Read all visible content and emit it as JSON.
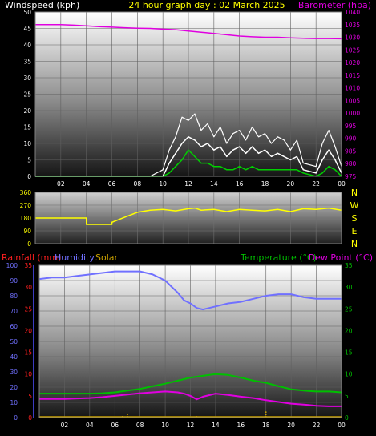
{
  "colors": {
    "windspeed": "#ffffff",
    "gust": "#ffffff",
    "wind_avg": "#00d000",
    "barometer": "#e000e0",
    "direction": "#ffff00",
    "humidity": "#7070ff",
    "temperature": "#00c000",
    "dewpoint": "#e000e0",
    "rainfall": "#ff2020",
    "solar": "#c8a000",
    "title": "#ffff00"
  },
  "chart_data": [
    {
      "id": "wind-baro",
      "type": "line",
      "title": "24 hour graph day : 02 March 2025",
      "ylabel_left": "Windspeed (kph)",
      "ylabel_right": "Barometer (hpa)",
      "x_ticks": [
        "02",
        "04",
        "06",
        "08",
        "10",
        "12",
        "14",
        "16",
        "18",
        "20",
        "22",
        "00"
      ],
      "y_left_ticks": [
        "0",
        "5",
        "10",
        "15",
        "20",
        "25",
        "30",
        "35",
        "40",
        "45",
        "50"
      ],
      "y_right_ticks": [
        "975",
        "980",
        "985",
        "990",
        "995",
        "1000",
        "1005",
        "1010",
        "1015",
        "1020",
        "1025",
        "1030",
        "1035",
        "1040"
      ],
      "ylim_left": [
        0,
        50
      ],
      "ylim_right": [
        975,
        1040
      ],
      "series": [
        {
          "key": "barometer",
          "axis": "right",
          "x": [
            0,
            1,
            2,
            3,
            4,
            5,
            6,
            7,
            8,
            9,
            10,
            11,
            12,
            13,
            14,
            15,
            16,
            17,
            18,
            19,
            20,
            21,
            22,
            23,
            24
          ],
          "values": [
            1035,
            1035,
            1035,
            1034.8,
            1034.5,
            1034.2,
            1034,
            1033.8,
            1033.6,
            1033.5,
            1033.2,
            1033,
            1032.5,
            1032,
            1031.5,
            1031,
            1030.5,
            1030.2,
            1030,
            1030,
            1029.8,
            1029.6,
            1029.5,
            1029.5,
            1029.4
          ]
        },
        {
          "key": "gust",
          "axis": "left",
          "x": [
            0,
            8,
            9,
            10,
            10.5,
            11,
            11.5,
            12,
            12.5,
            13,
            13.5,
            14,
            14.5,
            15,
            15.5,
            16,
            16.5,
            17,
            17.5,
            18,
            18.5,
            19,
            19.5,
            20,
            20.5,
            21,
            22,
            22.5,
            23,
            23.5,
            24
          ],
          "values": [
            0,
            0,
            0,
            2,
            8,
            12,
            18,
            17,
            19,
            14,
            16,
            12,
            15,
            10,
            13,
            14,
            11,
            15,
            12,
            13,
            10,
            12,
            11,
            8,
            11,
            4,
            3,
            10,
            14,
            9,
            3
          ]
        },
        {
          "key": "windspeed",
          "axis": "left",
          "x": [
            0,
            10,
            10.5,
            11,
            11.5,
            12,
            12.5,
            13,
            13.5,
            14,
            14.5,
            15,
            15.5,
            16,
            16.5,
            17,
            17.5,
            18,
            18.5,
            19,
            19.5,
            20,
            20.5,
            21,
            22,
            22.5,
            23,
            23.5,
            24
          ],
          "values": [
            0,
            0,
            4,
            7,
            10,
            12,
            11,
            9,
            10,
            8,
            9,
            6,
            8,
            9,
            7,
            9,
            7,
            8,
            6,
            7,
            6,
            5,
            6,
            2,
            1,
            5,
            8,
            5,
            1
          ]
        },
        {
          "key": "wind_avg",
          "axis": "left",
          "x": [
            0,
            10,
            10.5,
            11,
            11.5,
            12,
            12.5,
            13,
            13.5,
            14,
            14.5,
            15,
            15.5,
            16,
            16.5,
            17,
            17.5,
            18,
            18.5,
            19,
            19.5,
            20,
            20.5,
            21,
            22,
            22.5,
            23,
            23.5,
            24
          ],
          "values": [
            0,
            0,
            1,
            3,
            5,
            8,
            6,
            4,
            4,
            3,
            3,
            2,
            2,
            3,
            2,
            3,
            2,
            2,
            2,
            2,
            2,
            2,
            2,
            1,
            0,
            1,
            3,
            2,
            0
          ]
        }
      ]
    },
    {
      "id": "direction",
      "type": "line",
      "y_left_ticks": [
        "0",
        "90",
        "180",
        "270",
        "360"
      ],
      "y_right_labels": [
        "N",
        "W",
        "S",
        "E",
        "N"
      ],
      "ylim": [
        0,
        360
      ],
      "series": [
        {
          "key": "direction",
          "x": [
            0,
            1,
            2,
            3,
            4,
            4.01,
            5,
            6,
            6.01,
            7,
            8,
            9,
            10,
            11,
            12,
            12.5,
            13,
            14,
            15,
            16,
            17,
            18,
            19,
            20,
            21,
            22,
            23,
            24
          ],
          "values": [
            180,
            180,
            180,
            180,
            180,
            135,
            135,
            135,
            150,
            185,
            220,
            235,
            240,
            230,
            245,
            250,
            235,
            240,
            225,
            240,
            235,
            230,
            240,
            225,
            245,
            240,
            250,
            235
          ]
        }
      ]
    },
    {
      "id": "temp-hum",
      "type": "line",
      "ylabel_left_1": "Rainfall (mm)",
      "ylabel_left_2": "Humidity",
      "ylabel_left_3": "Solar",
      "ylabel_right_1": "Temperature (°C)",
      "ylabel_right_2": "Dew Point (°C)",
      "x_ticks": [
        "02",
        "04",
        "06",
        "08",
        "10",
        "12",
        "14",
        "16",
        "18",
        "20",
        "22",
        "00"
      ],
      "y_hum_ticks": [
        "0",
        "10",
        "20",
        "30",
        "40",
        "50",
        "60",
        "70",
        "80",
        "90",
        "100"
      ],
      "y_rain_ticks": [
        "0",
        "5",
        "10",
        "15",
        "20",
        "25",
        "30",
        "35"
      ],
      "y_temp_ticks": [
        "0",
        "5",
        "10",
        "15",
        "20",
        "25",
        "30",
        "35"
      ],
      "ylim_humidity": [
        0,
        100
      ],
      "ylim_temperature": [
        0,
        35
      ],
      "series": [
        {
          "key": "humidity",
          "axis": "humidity",
          "x": [
            0,
            1,
            2,
            3,
            4,
            5,
            6,
            7,
            8,
            9,
            10,
            10.5,
            11,
            11.5,
            12,
            12.5,
            13,
            14,
            15,
            16,
            17,
            18,
            19,
            20,
            21,
            22,
            23,
            24
          ],
          "values": [
            91,
            92,
            92,
            93,
            94,
            95,
            96,
            96,
            96,
            94,
            90,
            86,
            82,
            77,
            75,
            72,
            71,
            73,
            75,
            76,
            78,
            80,
            81,
            81,
            79,
            78,
            78,
            78
          ]
        },
        {
          "key": "temperature",
          "axis": "temperature",
          "x": [
            0,
            1,
            2,
            3,
            4,
            5,
            6,
            7,
            8,
            9,
            10,
            11,
            12,
            13,
            14,
            15,
            16,
            17,
            18,
            19,
            20,
            21,
            22,
            23,
            24
          ],
          "values": [
            5.5,
            5.5,
            5.5,
            5.5,
            5.5,
            5.6,
            5.8,
            6.2,
            6.6,
            7.2,
            7.8,
            8.5,
            9.2,
            9.6,
            10,
            9.8,
            9.2,
            8.5,
            8,
            7.2,
            6.5,
            6.2,
            6,
            6,
            5.8
          ]
        },
        {
          "key": "dewpoint",
          "axis": "temperature",
          "x": [
            0,
            1,
            2,
            3,
            4,
            5,
            6,
            7,
            8,
            9,
            10,
            11,
            11.5,
            12,
            12.5,
            13,
            14,
            15,
            16,
            17,
            18,
            19,
            20,
            21,
            22,
            23,
            24
          ],
          "values": [
            4.3,
            4.3,
            4.3,
            4.4,
            4.5,
            4.7,
            5,
            5.3,
            5.6,
            5.8,
            6,
            5.8,
            5.5,
            5,
            4.2,
            4.8,
            5.5,
            5.2,
            4.8,
            4.5,
            4,
            3.6,
            3.2,
            3,
            2.7,
            2.6,
            2.6
          ]
        },
        {
          "key": "solar",
          "axis": "humidity",
          "type": "bars",
          "x": [
            6.6,
            7,
            12.5,
            18
          ],
          "values": [
            1.5,
            3,
            1,
            4
          ]
        }
      ]
    }
  ]
}
